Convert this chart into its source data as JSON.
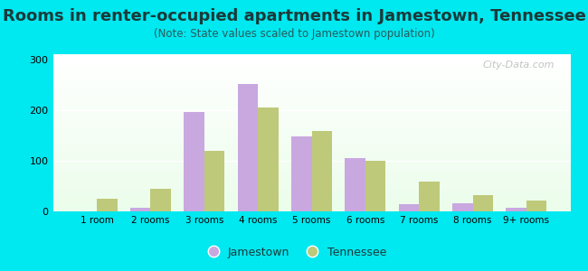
{
  "title": "Rooms in renter-occupied apartments in Jamestown, Tennessee",
  "subtitle": "(Note: State values scaled to Jamestown population)",
  "categories": [
    "1 room",
    "2 rooms",
    "3 rooms",
    "4 rooms",
    "5 rooms",
    "6 rooms",
    "7 rooms",
    "8 rooms",
    "9+ rooms"
  ],
  "jamestown_values": [
    0,
    7,
    196,
    252,
    147,
    105,
    15,
    16,
    7
  ],
  "tennessee_values": [
    25,
    45,
    120,
    204,
    158,
    100,
    58,
    32,
    22
  ],
  "jamestown_color": "#c9a8e0",
  "tennessee_color": "#bfc97a",
  "background_color": "#00e8f0",
  "ylim": [
    0,
    310
  ],
  "yticks": [
    0,
    100,
    200,
    300
  ],
  "bar_width": 0.38,
  "title_fontsize": 13,
  "subtitle_fontsize": 8.5,
  "watermark": "City-Data.com"
}
